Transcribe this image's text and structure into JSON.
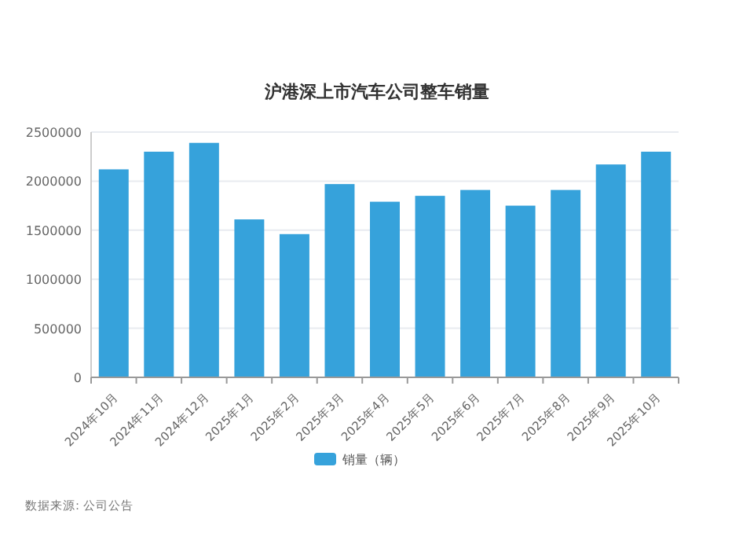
{
  "chart_data": {
    "type": "bar",
    "title": "沪港深上市汽车公司整车销量",
    "categories": [
      "2024年10月",
      "2024年11月",
      "2024年12月",
      "2025年1月",
      "2025年2月",
      "2025年3月",
      "2025年4月",
      "2025年5月",
      "2025年6月",
      "2025年7月",
      "2025年8月",
      "2025年9月",
      "2025年10月"
    ],
    "series": [
      {
        "name": "销量（辆）",
        "color": "#36a2db",
        "values": [
          2120000,
          2300000,
          2390000,
          1610000,
          1460000,
          1970000,
          1790000,
          1850000,
          1910000,
          1750000,
          1910000,
          2170000,
          2300000
        ]
      }
    ],
    "ylim": [
      0,
      2500000
    ],
    "yticks": [
      0,
      500000,
      1000000,
      1500000,
      2000000,
      2500000
    ],
    "grid": "y",
    "legend": "bottom",
    "annotations": [
      "数据来源: 公司公告"
    ]
  }
}
